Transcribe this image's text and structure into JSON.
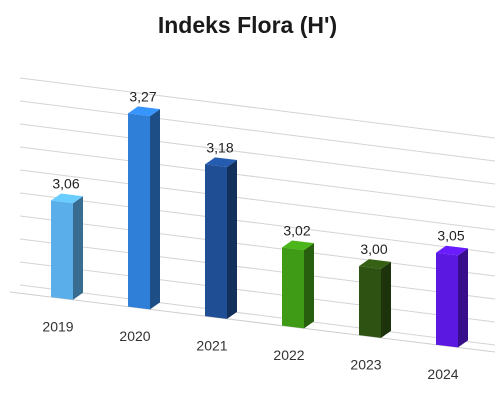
{
  "chart_data": {
    "type": "bar",
    "title": "Indeks Flora (H')",
    "categories": [
      "2019",
      "2020",
      "2021",
      "2022",
      "2023",
      "2024"
    ],
    "values": [
      3.06,
      3.27,
      3.18,
      3.02,
      3.0,
      3.05
    ],
    "value_labels": [
      "3,06",
      "3,27",
      "3,18",
      "3,02",
      "3,00",
      "3,05"
    ],
    "colors": [
      "#5aaeea",
      "#2f7ed8",
      "#1f4e94",
      "#3f9a16",
      "#2e5212",
      "#5a18e0"
    ],
    "ylim": [
      2.85,
      3.3
    ],
    "grid": true,
    "three_d": true,
    "legend": "none"
  }
}
